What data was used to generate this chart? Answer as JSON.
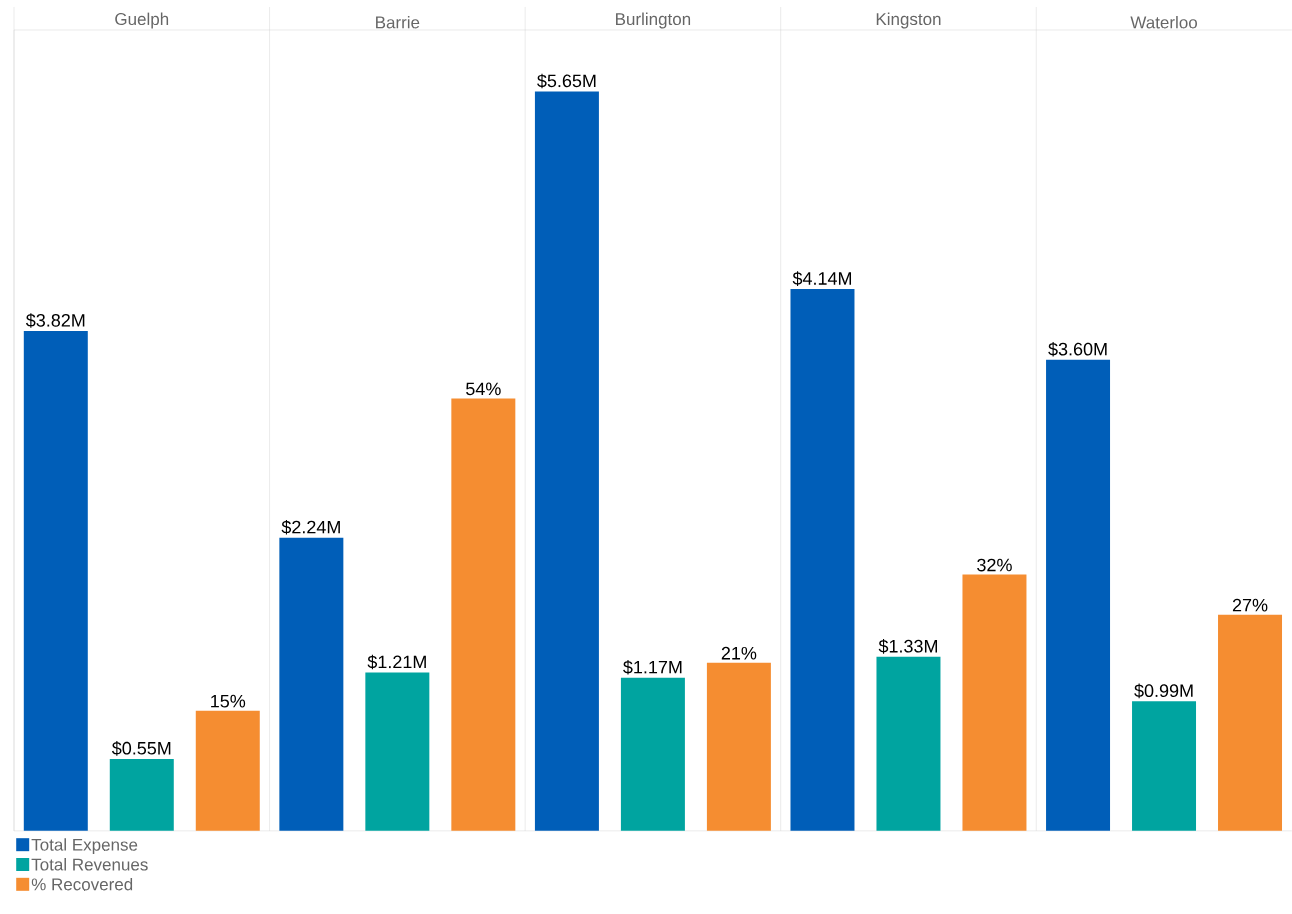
{
  "chart_data": {
    "type": "bar",
    "categories": [
      "Guelph",
      "Barrie",
      "Burlington",
      "Kingston",
      "Waterloo"
    ],
    "series": [
      {
        "name": "Total Expense",
        "color": "#005eb8",
        "values": [
          3.82,
          2.24,
          5.65,
          4.14,
          3.6
        ],
        "value_labels": [
          "$3.82M",
          "$2.24M",
          "$5.65M",
          "$4.14M",
          "$3.60M"
        ]
      },
      {
        "name": "Total Revenues",
        "color": "#00a4a0",
        "values": [
          0.55,
          1.21,
          1.17,
          1.33,
          0.99
        ],
        "value_labels": [
          "$0.55M",
          "$1.21M",
          "$1.17M",
          "$1.33M",
          "$0.99M"
        ]
      },
      {
        "name": "% Recovered",
        "color": "#f58d31",
        "axis": "y2",
        "values": [
          15,
          54,
          21,
          32,
          27
        ],
        "value_labels": [
          "15%",
          "54%",
          "21%",
          "32%",
          "27%"
        ]
      }
    ],
    "ylim": [
      0,
      6.12
    ],
    "y2lim": [
      0,
      100
    ],
    "tick_labels": "x",
    "legend": "bottom left"
  }
}
